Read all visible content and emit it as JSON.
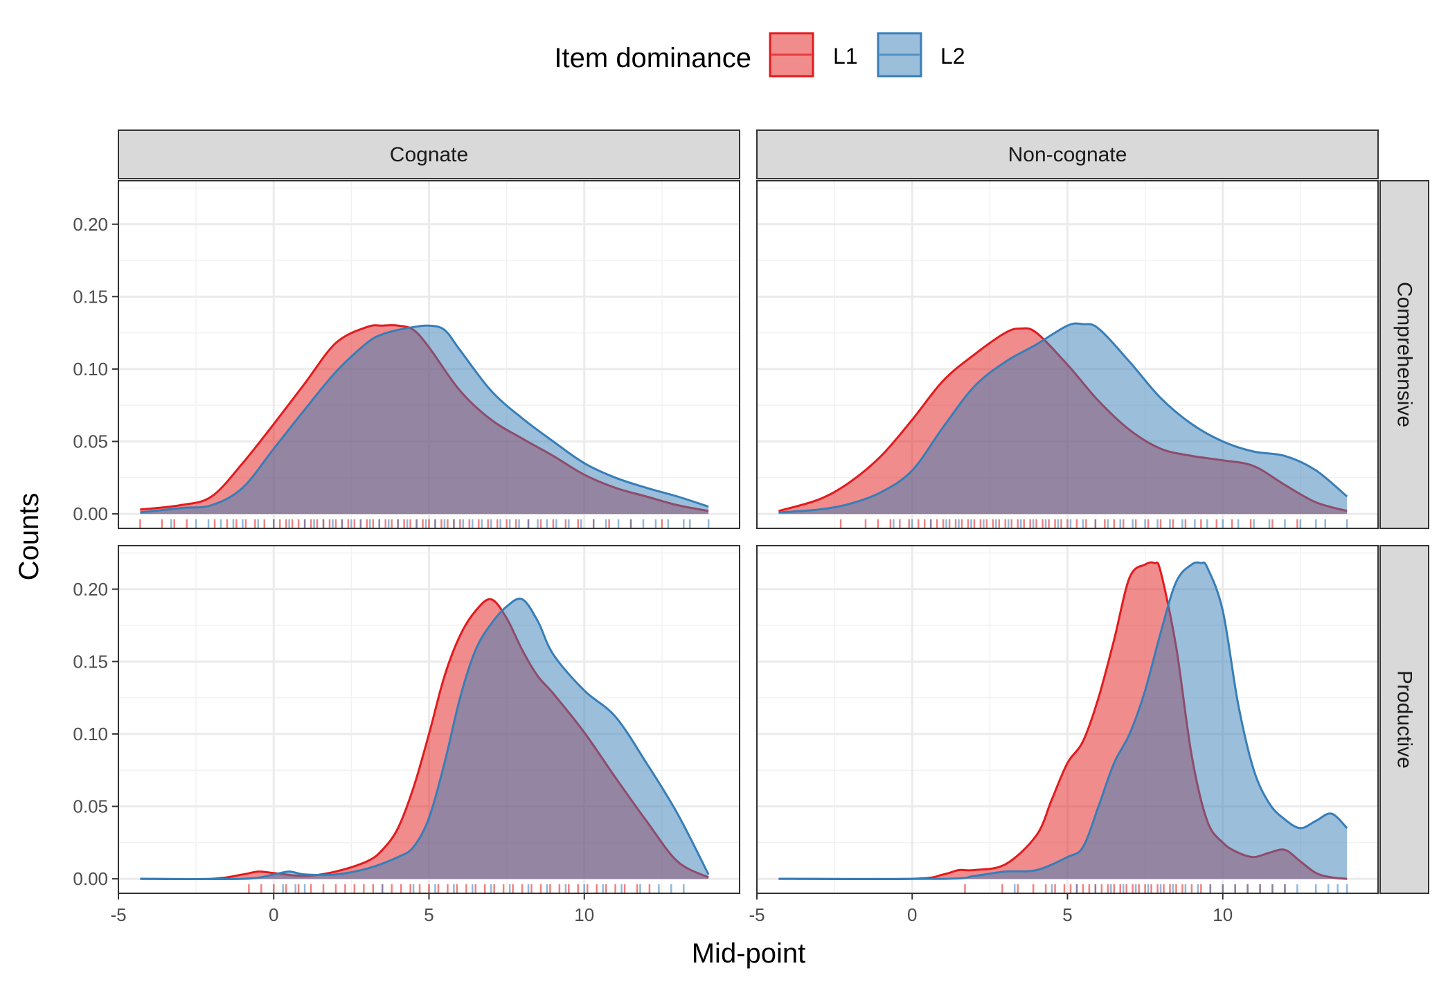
{
  "chart_data": {
    "type": "area",
    "subtype": "density-with-rug",
    "xlabel": "Mid-point",
    "ylabel": "Counts",
    "xlim": [
      -5,
      15
    ],
    "ylim": [
      -0.01,
      0.23
    ],
    "x_ticks": [
      -5,
      0,
      5,
      10
    ],
    "x_tick_labels": [
      "-5",
      "0",
      "5",
      "10"
    ],
    "y_ticks": [
      0,
      0.05,
      0.1,
      0.15,
      0.2
    ],
    "y_tick_labels": [
      "0.00",
      "0.05",
      "0.10",
      "0.15",
      "0.20"
    ],
    "grid": true,
    "legend": {
      "title": "Item dominance",
      "position": "top",
      "entries": [
        {
          "label": "L1",
          "fill": "#E41A1C"
        },
        {
          "label": "L2",
          "fill": "#377EB8"
        }
      ]
    },
    "column_facets": [
      "Cognate",
      "Non-cognate"
    ],
    "row_facets": [
      "Comprehensive",
      "Productive"
    ],
    "panels": [
      {
        "col": "Cognate",
        "row": "Comprehensive",
        "series": [
          {
            "name": "L1",
            "x": [
              -4.3,
              -3,
              -2,
              -1,
              0,
              1,
              2,
              3,
              3.5,
              4,
              4.5,
              5,
              6,
              7,
              8,
              9,
              10,
              11,
              12,
              13,
              14
            ],
            "y": [
              0.003,
              0.006,
              0.012,
              0.035,
              0.062,
              0.09,
              0.118,
              0.129,
              0.13,
              0.13,
              0.127,
              0.115,
              0.085,
              0.065,
              0.052,
              0.04,
              0.027,
              0.018,
              0.012,
              0.006,
              0.002
            ]
          },
          {
            "name": "L2",
            "x": [
              -4.3,
              -3,
              -2,
              -1,
              0,
              1,
              2,
              3,
              3.5,
              4,
              4.5,
              5,
              5.5,
              6,
              7,
              8,
              9,
              10,
              11,
              12,
              13,
              14
            ],
            "y": [
              0.001,
              0.004,
              0.006,
              0.018,
              0.045,
              0.072,
              0.098,
              0.118,
              0.124,
              0.127,
              0.129,
              0.13,
              0.127,
              0.113,
              0.085,
              0.066,
              0.05,
              0.035,
              0.025,
              0.018,
              0.012,
              0.005
            ]
          }
        ],
        "rug": {
          "L1": [
            -4.3,
            -3.6,
            -3.2,
            -2.8,
            -1.9,
            -1.5,
            -1.2,
            -0.9,
            -0.6,
            -0.3,
            0,
            0.2,
            0.4,
            0.6,
            0.8,
            1,
            1.2,
            1.4,
            1.6,
            1.8,
            2,
            2.2,
            2.4,
            2.6,
            2.8,
            3,
            3.2,
            3.4,
            3.6,
            3.8,
            4,
            4.2,
            4.4,
            4.6,
            4.8,
            5,
            5.2,
            5.4,
            5.6,
            5.8,
            6,
            6.3,
            6.6,
            6.9,
            7.2,
            7.5,
            7.8,
            8.2,
            8.6,
            9,
            9.4,
            9.8,
            10.3,
            10.8,
            11.5,
            12.5
          ],
          "L2": [
            -3.3,
            -2.5,
            -2.1,
            -1.7,
            -1.3,
            -1,
            -0.5,
            0,
            0.5,
            1,
            1.3,
            1.6,
            1.9,
            2.2,
            2.5,
            2.8,
            3.1,
            3.4,
            3.7,
            4,
            4.3,
            4.6,
            4.9,
            5.2,
            5.5,
            5.8,
            6.1,
            6.4,
            6.7,
            7,
            7.3,
            7.6,
            7.9,
            8.2,
            8.5,
            8.8,
            9.1,
            9.5,
            9.9,
            10.3,
            10.7,
            11.1,
            11.5,
            11.9,
            12.3,
            12.7,
            13.2,
            13.4,
            14
          ]
        }
      },
      {
        "col": "Non-cognate",
        "row": "Comprehensive",
        "series": [
          {
            "name": "L1",
            "x": [
              -4.3,
              -3,
              -2,
              -1,
              0,
              1,
              2,
              3,
              3.5,
              4,
              5,
              6,
              7,
              8,
              9,
              10,
              11,
              12,
              13,
              14
            ],
            "y": [
              0.002,
              0.01,
              0.022,
              0.04,
              0.065,
              0.092,
              0.11,
              0.125,
              0.128,
              0.125,
              0.103,
              0.078,
              0.058,
              0.045,
              0.04,
              0.037,
              0.033,
              0.02,
              0.008,
              0.002
            ]
          },
          {
            "name": "L2",
            "x": [
              -4.3,
              -3,
              -2,
              -1,
              0,
              1,
              2,
              3,
              4,
              5,
              5.5,
              6,
              7,
              8,
              9,
              10,
              11,
              12,
              13,
              14
            ],
            "y": [
              0.001,
              0.003,
              0.007,
              0.015,
              0.03,
              0.06,
              0.088,
              0.105,
              0.117,
              0.13,
              0.131,
              0.128,
              0.105,
              0.08,
              0.062,
              0.05,
              0.043,
              0.04,
              0.03,
              0.012
            ]
          }
        ],
        "rug": {
          "L1": [
            -2.3,
            -1.5,
            -1.1,
            -0.7,
            -0.4,
            -0.1,
            0.2,
            0.4,
            0.6,
            0.8,
            1,
            1.2,
            1.4,
            1.6,
            1.8,
            2,
            2.2,
            2.4,
            2.6,
            2.8,
            3,
            3.2,
            3.4,
            3.6,
            3.8,
            4,
            4.2,
            4.4,
            4.6,
            4.8,
            5,
            5.3,
            5.6,
            5.9,
            6.2,
            6.5,
            6.8,
            7.2,
            7.6,
            8,
            8.4,
            8.8,
            9.3,
            9.8,
            10.3,
            10.9,
            11.6,
            12.4
          ],
          "L2": [
            -0.6,
            0,
            0.6,
            1.1,
            1.5,
            1.9,
            2.3,
            2.7,
            3.1,
            3.5,
            3.9,
            4.3,
            4.7,
            5.1,
            5.5,
            5.9,
            6.3,
            6.7,
            7.1,
            7.5,
            7.9,
            8.3,
            8.7,
            9.1,
            9.5,
            10,
            10.5,
            11,
            11.5,
            12,
            12.5,
            13,
            13.3,
            14
          ]
        }
      },
      {
        "col": "Cognate",
        "row": "Productive",
        "series": [
          {
            "name": "L1",
            "x": [
              -4.3,
              -2,
              -1,
              -0.5,
              0,
              1,
              2,
              3,
              3.5,
              4,
              4.5,
              5,
              5.5,
              6,
              6.5,
              7,
              7.5,
              8,
              8.5,
              9,
              10,
              11,
              12,
              13,
              14
            ],
            "y": [
              0,
              0,
              0.003,
              0.005,
              0.004,
              0.002,
              0.005,
              0.012,
              0.02,
              0.035,
              0.063,
              0.1,
              0.14,
              0.168,
              0.185,
              0.193,
              0.18,
              0.158,
              0.14,
              0.128,
              0.101,
              0.07,
              0.04,
              0.012,
              0.001
            ]
          },
          {
            "name": "L2",
            "x": [
              -4.3,
              -1,
              0,
              0.5,
              1,
              2,
              3,
              4,
              4.5,
              5,
              5.5,
              6,
              6.5,
              7,
              7.5,
              8,
              8.5,
              9,
              10,
              11,
              12,
              13,
              14
            ],
            "y": [
              0,
              0,
              0.003,
              0.005,
              0.003,
              0.003,
              0.007,
              0.015,
              0.022,
              0.042,
              0.08,
              0.125,
              0.158,
              0.176,
              0.188,
              0.193,
              0.178,
              0.155,
              0.13,
              0.112,
              0.08,
              0.045,
              0.003
            ]
          }
        ],
        "rug": {
          "L1": [
            -0.8,
            -0.4,
            0,
            0.4,
            0.8,
            1.2,
            1.6,
            2,
            2.3,
            2.6,
            2.9,
            3.2,
            3.5,
            3.8,
            4.1,
            4.4,
            4.7,
            5,
            5.3,
            5.6,
            5.9,
            6.2,
            6.5,
            6.8,
            7.1,
            7.4,
            7.7,
            8,
            8.3,
            8.6,
            8.9,
            9.2,
            9.5,
            9.8,
            10.1,
            10.4,
            10.7,
            11,
            11.3,
            11.7,
            12.1
          ],
          "L2": [
            0.3,
            0.7,
            1,
            3.5,
            4.5,
            5.2,
            5.8,
            6.4,
            7,
            7.6,
            8.2,
            8.8,
            9.4,
            10,
            10.6,
            11.2,
            11.8,
            12.4,
            12.8,
            13.2
          ]
        }
      },
      {
        "col": "Non-cognate",
        "row": "Productive",
        "series": [
          {
            "name": "L1",
            "x": [
              -4.3,
              0,
              1,
              1.5,
              2,
              3,
              4,
              4.5,
              5,
              5.5,
              6,
              6.5,
              7,
              7.5,
              7.8,
              8,
              8.5,
              9,
              9.5,
              10,
              10.5,
              11,
              11.5,
              12,
              12.5,
              13,
              13.5,
              14
            ],
            "y": [
              0,
              0,
              0.003,
              0.006,
              0.006,
              0.01,
              0.03,
              0.055,
              0.08,
              0.095,
              0.125,
              0.165,
              0.208,
              0.217,
              0.218,
              0.212,
              0.16,
              0.085,
              0.04,
              0.025,
              0.018,
              0.015,
              0.018,
              0.02,
              0.012,
              0.004,
              0.001,
              0
            ]
          },
          {
            "name": "L2",
            "x": [
              -4.3,
              1,
              2,
              3,
              4,
              5,
              5.5,
              6,
              6.5,
              7,
              7.5,
              8,
              8.5,
              9,
              9.3,
              9.5,
              10,
              10.5,
              11,
              11.5,
              12,
              12.5,
              13,
              13.5,
              14
            ],
            "y": [
              0,
              0,
              0.002,
              0.005,
              0.006,
              0.015,
              0.022,
              0.05,
              0.08,
              0.1,
              0.13,
              0.17,
              0.205,
              0.217,
              0.218,
              0.215,
              0.185,
              0.12,
              0.075,
              0.052,
              0.041,
              0.035,
              0.04,
              0.045,
              0.035
            ]
          }
        ],
        "rug": {
          "L1": [
            1.7,
            2.9,
            3.4,
            3.9,
            4.3,
            4.6,
            4.9,
            5.1,
            5.3,
            5.5,
            5.7,
            5.9,
            6.1,
            6.3,
            6.5,
            6.7,
            6.9,
            7.1,
            7.3,
            7.5,
            7.7,
            7.9,
            8.1,
            8.3,
            8.5,
            8.7,
            9,
            9.3,
            9.6,
            10,
            10.4,
            10.8,
            11.2,
            11.6,
            12
          ],
          "L2": [
            3.3,
            4.5,
            5.3,
            5.9,
            6.4,
            6.8,
            7.2,
            7.6,
            8,
            8.4,
            8.8,
            9.2,
            9.6,
            10,
            10.4,
            10.8,
            11.2,
            11.6,
            12,
            12.4,
            13,
            13.4,
            13.7,
            14
          ]
        }
      }
    ]
  }
}
